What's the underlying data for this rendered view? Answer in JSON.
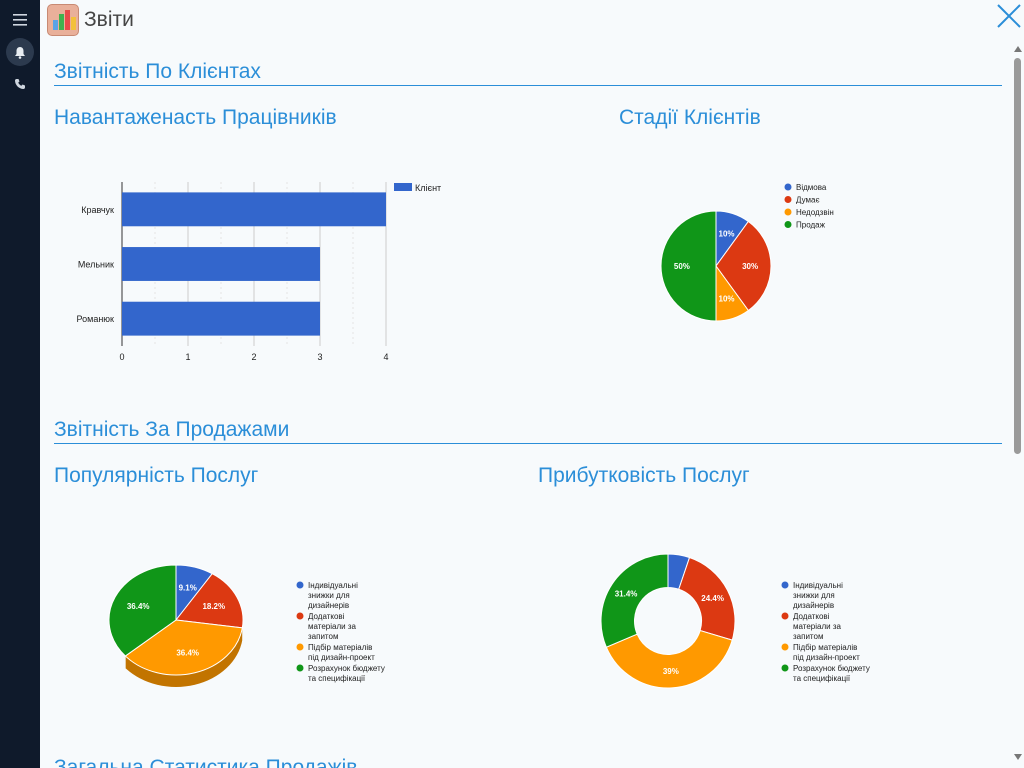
{
  "header": {
    "title": "Звіти"
  },
  "sections": {
    "clients": "Звітність По Клієнтах",
    "sales": "Звітність За Продажами",
    "overall": "Загальна Статистика Продажів"
  },
  "charts": {
    "workload": {
      "title": "Навантаженасть Працівників"
    },
    "stages": {
      "title": "Стадії Клієнтів"
    },
    "popularity": {
      "title": "Популярність Послуг"
    },
    "profitability": {
      "title": "Прибутковість Послуг"
    }
  },
  "colors": {
    "accent": "#2b8ed8",
    "blue": "#3366cc",
    "red": "#dc3912",
    "orange": "#ff9900",
    "green": "#109618"
  },
  "chart_data": [
    {
      "type": "bar",
      "orientation": "horizontal",
      "title": "Навантаженасть Працівників",
      "categories": [
        "Кравчук",
        "Мельник",
        "Романюк"
      ],
      "series": [
        {
          "name": "Клієнт",
          "values": [
            4,
            3,
            3
          ]
        }
      ],
      "xlim": [
        0,
        4
      ],
      "ticks": [
        "0",
        "1",
        "2",
        "3",
        "4"
      ],
      "legend": "top-right"
    },
    {
      "type": "pie",
      "title": "Стадії Клієнтів",
      "labels": [
        "Відмова",
        "Думає",
        "Недодзвін",
        "Продаж"
      ],
      "values": [
        10,
        30,
        10,
        50
      ],
      "value_labels": [
        "10%",
        "30%",
        "10%",
        "50%"
      ],
      "legend": "right"
    },
    {
      "type": "pie",
      "style": "3d",
      "title": "Популярність Послуг",
      "labels": [
        "Індивідуальні знижки для дизайнерів",
        "Додаткові матеріали за запитом",
        "Підбір матеріалів під дизайн-проект",
        "Розрахунок бюджету та специфікації"
      ],
      "values": [
        9.1,
        18.2,
        36.4,
        36.4
      ],
      "value_labels": [
        "9.1%",
        "18.2%",
        "36.4%",
        "36.4%"
      ],
      "legend": "right"
    },
    {
      "type": "pie",
      "style": "donut",
      "title": "Прибутковість Послуг",
      "labels": [
        "Індивідуальні знижки для дизайнерів",
        "Додаткові матеріали за запитом",
        "Підбір матеріалів під дизайн-проект",
        "Розрахунок бюджету та специфікації"
      ],
      "values": [
        5.2,
        24.4,
        39,
        31.4
      ],
      "value_labels": [
        "",
        "24.4%",
        "39%",
        "31.4%"
      ],
      "legend": "right"
    }
  ]
}
